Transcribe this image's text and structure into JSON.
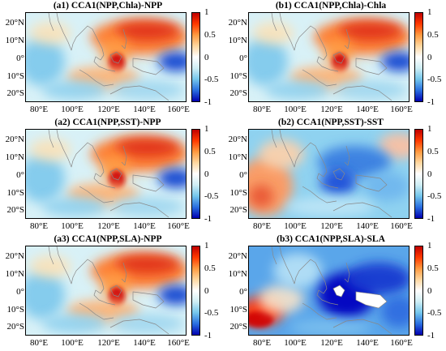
{
  "figure": {
    "panels": [
      {
        "id": "a1",
        "title": "(a1) CCA1(NPP,Chla)-NPP",
        "style": "npp"
      },
      {
        "id": "b1",
        "title": "(b1) CCA1(NPP,Chla)-Chla",
        "style": "npp"
      },
      {
        "id": "a2",
        "title": "(a2) CCA1(NPP,SST)-NPP",
        "style": "npp"
      },
      {
        "id": "b2",
        "title": "(b2) CCA1(NPP,SST)-SST",
        "style": "sst"
      },
      {
        "id": "a3",
        "title": "(a3) CCA1(NPP,SLA)-NPP",
        "style": "npp"
      },
      {
        "id": "b3",
        "title": "(b3) CCA1(NPP,SLA)-SLA",
        "style": "sla"
      }
    ],
    "lat_labels": [
      "20°N",
      "10°N",
      "0°",
      "10°S",
      "20°S"
    ],
    "lon_labels": [
      "80°E",
      "100°E",
      "120°E",
      "140°E",
      "160°E"
    ],
    "colorbar": {
      "ticks": [
        "1",
        "0.5",
        "0",
        "-0.5",
        "-1"
      ],
      "colors": [
        "#c00000",
        "#ff3a00",
        "#ff9a40",
        "#ffd7a0",
        "#ffffff",
        "#cfeef5",
        "#74c6ec",
        "#2a6fe0",
        "#0000b0"
      ]
    }
  }
}
